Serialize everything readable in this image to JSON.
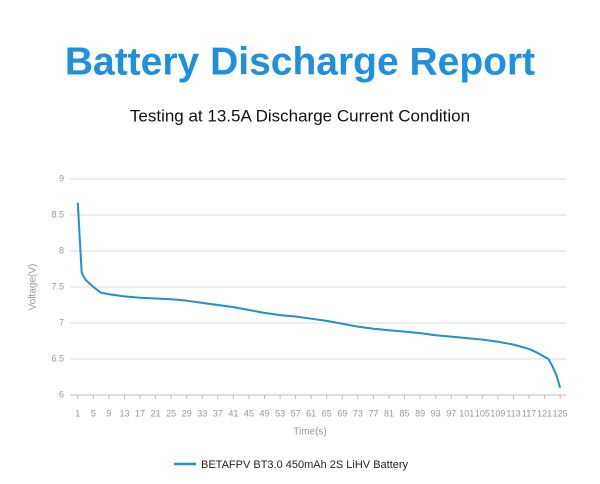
{
  "chart_data": {
    "type": "line",
    "title": "Battery Discharge Report",
    "subtitle": "Testing at 13.5A Discharge Current Condition",
    "x_label": "Time(s)",
    "y_label": "Voltage(V)",
    "x": [
      1,
      2,
      3,
      5,
      7,
      9,
      13,
      17,
      21,
      25,
      29,
      33,
      37,
      41,
      45,
      49,
      53,
      57,
      61,
      65,
      69,
      73,
      77,
      81,
      85,
      89,
      93,
      97,
      101,
      105,
      109,
      113,
      117,
      119,
      121,
      122,
      123,
      124,
      125
    ],
    "series": [
      {
        "name": "BETAFPV BT3.0 450mAh 2S LiHV Battery",
        "color": "#1f8fd8",
        "values": [
          8.67,
          7.7,
          7.6,
          7.5,
          7.42,
          7.4,
          7.37,
          7.35,
          7.34,
          7.33,
          7.31,
          7.28,
          7.25,
          7.22,
          7.18,
          7.14,
          7.11,
          7.09,
          7.06,
          7.03,
          6.99,
          6.95,
          6.92,
          6.9,
          6.88,
          6.86,
          6.83,
          6.81,
          6.79,
          6.77,
          6.74,
          6.7,
          6.64,
          6.59,
          6.53,
          6.5,
          6.4,
          6.28,
          6.1
        ]
      }
    ],
    "xlim": [
      -1,
      126.5
    ],
    "xticks": [
      1,
      5,
      9,
      13,
      17,
      21,
      25,
      29,
      33,
      37,
      41,
      45,
      49,
      53,
      57,
      61,
      65,
      69,
      73,
      77,
      81,
      85,
      89,
      93,
      97,
      101,
      105,
      109,
      113,
      117,
      121,
      125
    ],
    "ylim": [
      6,
      9
    ],
    "yticks": [
      6,
      6.5,
      7,
      7.5,
      8,
      8.5,
      9
    ],
    "grid": true,
    "legend": "bottom"
  }
}
